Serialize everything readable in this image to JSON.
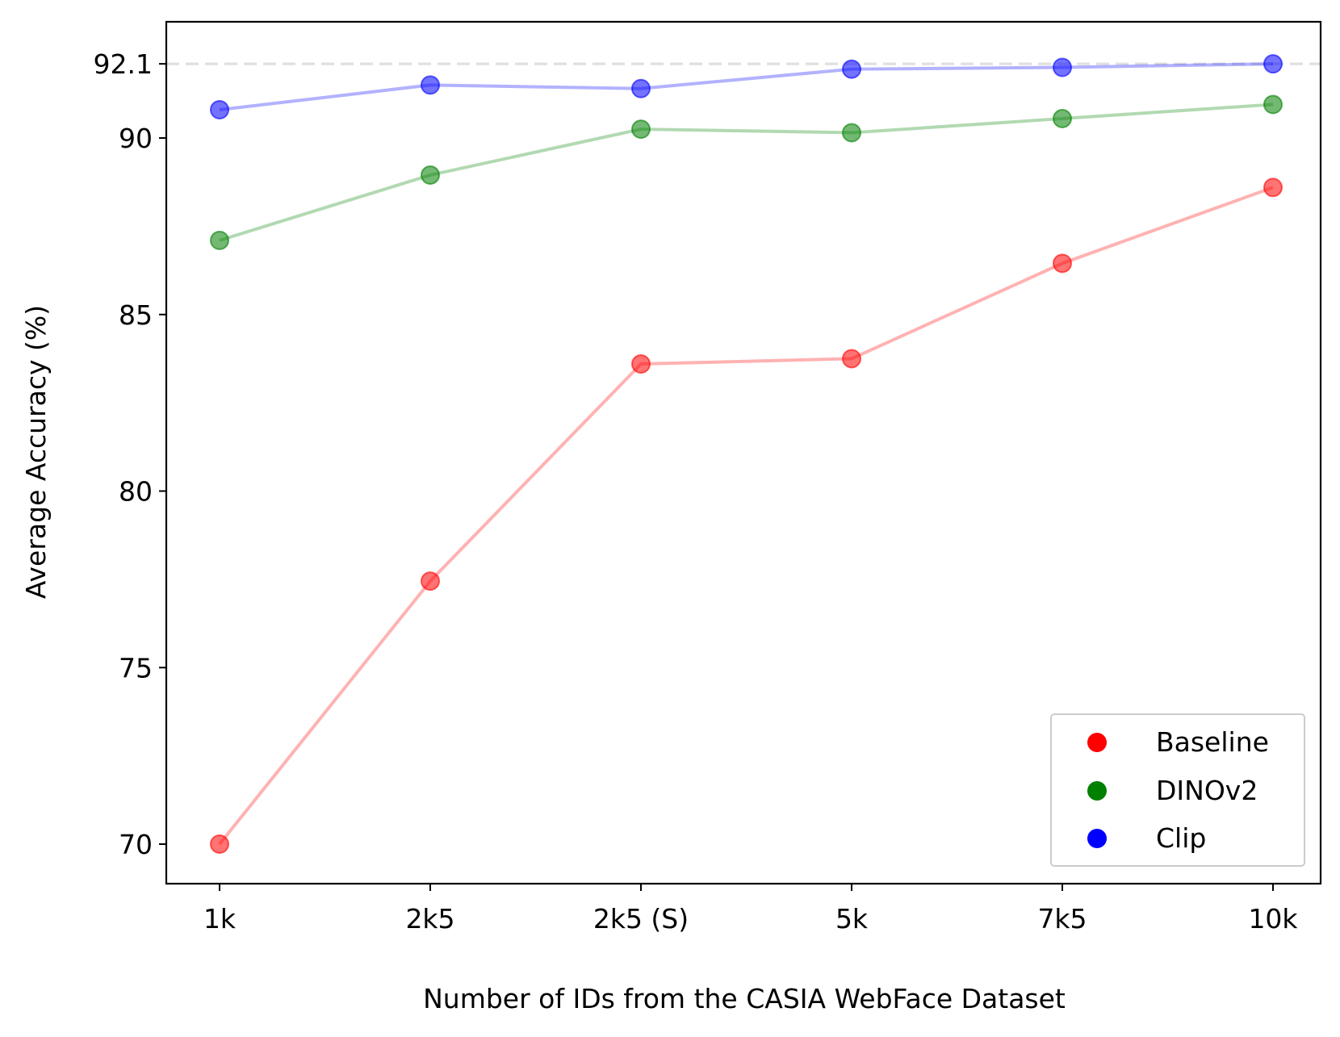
{
  "chart_data": {
    "type": "line",
    "title": "",
    "xlabel": "Number of IDs from the CASIA WebFace Dataset",
    "ylabel": "Average Accuracy (%)",
    "categories": [
      "1k",
      "2k5",
      "2k5 (S)",
      "5k",
      "7k5",
      "10k"
    ],
    "yticks": [
      "70",
      "75",
      "80",
      "85",
      "90",
      "92.1"
    ],
    "ylim": [
      68.9,
      93.3
    ],
    "reference_line": {
      "value": 92.1,
      "style": "dashed",
      "color": "#e0e0e0"
    },
    "legend_position": "lower-right",
    "series": [
      {
        "name": "Baseline",
        "color": "#ff0000",
        "values": [
          70.0,
          77.45,
          83.6,
          83.75,
          86.45,
          88.6
        ]
      },
      {
        "name": "DINOv2",
        "color": "#008000",
        "values": [
          87.1,
          88.95,
          90.25,
          90.15,
          90.55,
          90.95
        ]
      },
      {
        "name": "Clip",
        "color": "#0000ff",
        "values": [
          90.8,
          91.5,
          91.4,
          91.95,
          92.0,
          92.1
        ]
      }
    ]
  }
}
